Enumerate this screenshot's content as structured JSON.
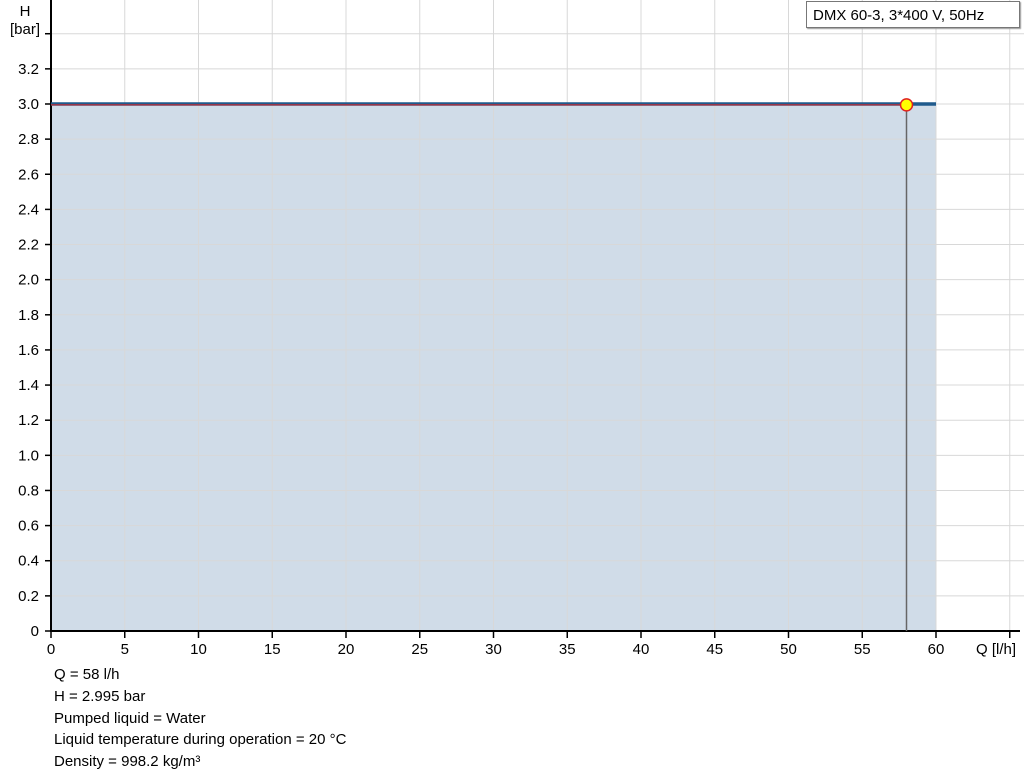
{
  "chart_data": {
    "type": "area",
    "title": "",
    "xlabel": "Q [l/h]",
    "ylabel_line1": "H",
    "ylabel_line2": "[bar]",
    "xlim": [
      0,
      65
    ],
    "ylim": [
      0,
      3.4
    ],
    "x_ticks": [
      0,
      5,
      10,
      15,
      20,
      25,
      30,
      35,
      40,
      45,
      50,
      55,
      60
    ],
    "y_ticks": [
      "0",
      "0.2",
      "0.4",
      "0.6",
      "0.8",
      "1.0",
      "1.2",
      "1.4",
      "1.6",
      "1.8",
      "2.0",
      "2.2",
      "2.4",
      "2.6",
      "2.8",
      "3.0",
      "3.2"
    ],
    "grid": true,
    "series": [
      {
        "name": "DMX 60-3, 3*400 V, 50Hz",
        "x": [
          0,
          60
        ],
        "y": [
          3.0,
          3.0
        ],
        "color": "#1f5a8c",
        "fill": "#d0dce8"
      }
    ],
    "operating_point": {
      "x": 58,
      "y": 2.995,
      "color": "#ffff00",
      "border": "#e02020"
    },
    "legend": "top-right"
  },
  "info": {
    "lines": [
      "Q = 58 l/h",
      "H = 2.995 bar",
      "Pumped liquid = Water",
      "Liquid temperature during operation = 20 °C",
      "Density = 998.2 kg/m³"
    ]
  }
}
